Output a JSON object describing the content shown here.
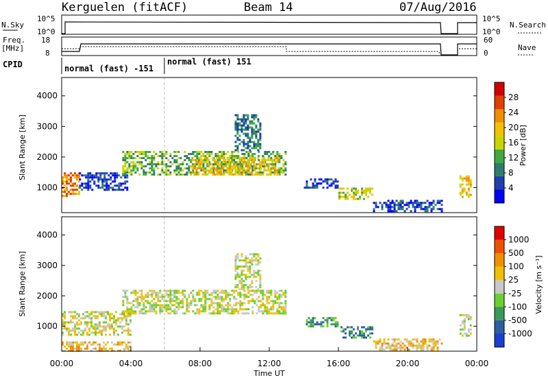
{
  "header": {
    "station": "Kerguelen (fitACF)",
    "beam": "Beam 14",
    "date": "07/Aug/2016"
  },
  "top_panels": {
    "nsky_label": "N.Sky",
    "nsky_ticks": [
      "10^5",
      "10^0"
    ],
    "nsearch_label": "N.Search",
    "nsearch_ticks": [
      "10^5",
      "10^0"
    ],
    "freq_label": "Freq.",
    "freq_unit": "[MHz]",
    "freq_ticks": [
      "18",
      "8"
    ],
    "nave_label": "Nave",
    "nave_ticks": [
      "60",
      "0"
    ],
    "cpid_label": "CPID",
    "cpid_segments": [
      "normal (fast) -151",
      "normal (fast) 151"
    ]
  },
  "chart_data": [
    {
      "type": "heatmap",
      "name": "power",
      "ylabel": "Slant Range [km]",
      "yticks": [
        1000,
        2000,
        3000,
        4000
      ],
      "ylim": [
        180,
        4600
      ],
      "xlim": [
        0,
        24
      ],
      "colorbar": {
        "label": "Power [dB]",
        "ticks": [
          "28",
          "24",
          "20",
          "16",
          "12",
          "8",
          "4"
        ],
        "colors": [
          "#0000ff",
          "#1f3fb0",
          "#2e7d6b",
          "#3faa3f",
          "#c8d400",
          "#f2c200",
          "#f28c00",
          "#e04000",
          "#d00000"
        ]
      },
      "regions": [
        {
          "t0": 0.0,
          "t1": 1.0,
          "r0": 700,
          "r1": 1500,
          "level": 6
        },
        {
          "t0": 1.0,
          "t1": 3.8,
          "r0": 900,
          "r1": 1500,
          "level": 1
        },
        {
          "t0": 3.5,
          "t1": 13.0,
          "r0": 1400,
          "r1": 2200,
          "level": 3
        },
        {
          "t0": 7.5,
          "t1": 12.5,
          "r0": 1400,
          "r1": 2000,
          "level": 5
        },
        {
          "t0": 10.0,
          "t1": 11.5,
          "r0": 2200,
          "r1": 3400,
          "level": 2
        },
        {
          "t0": 14.0,
          "t1": 16.0,
          "r0": 1000,
          "r1": 1300,
          "level": 1
        },
        {
          "t0": 16.0,
          "t1": 18.0,
          "r0": 600,
          "r1": 1000,
          "level": 4
        },
        {
          "t0": 18.0,
          "t1": 22.0,
          "r0": 200,
          "r1": 600,
          "level": 1
        },
        {
          "t0": 23.0,
          "t1": 23.6,
          "r0": 700,
          "r1": 1400,
          "level": 5
        }
      ]
    },
    {
      "type": "heatmap",
      "name": "velocity",
      "ylabel": "Slant Range [km]",
      "xlabel": "Time UT",
      "yticks": [
        1000,
        2000,
        3000,
        4000
      ],
      "xticks": [
        "00:00",
        "04:00",
        "08:00",
        "12:00",
        "16:00",
        "20:00",
        "00:00"
      ],
      "ylim": [
        180,
        4600
      ],
      "xlim": [
        0,
        24
      ],
      "colorbar": {
        "label": "Velocity [m s⁻¹]",
        "ticks": [
          "1000",
          "500",
          "100",
          "25",
          "-25",
          "-100",
          "-500",
          "-1000"
        ],
        "colors": [
          "#1a3fd0",
          "#2e5fa0",
          "#3a9a5a",
          "#6ad030",
          "#c8c8c8",
          "#f0c000",
          "#f09000",
          "#f05000",
          "#e00000"
        ]
      },
      "regions": [
        {
          "t0": 0.0,
          "t1": 4.0,
          "r0": 700,
          "r1": 1500,
          "level": 4
        },
        {
          "t0": 3.5,
          "t1": 13.0,
          "r0": 1400,
          "r1": 2200,
          "level": 4
        },
        {
          "t0": 10.0,
          "t1": 11.5,
          "r0": 2200,
          "r1": 3400,
          "level": 4
        },
        {
          "t0": 0.0,
          "t1": 4.0,
          "r0": 200,
          "r1": 500,
          "level": 5
        },
        {
          "t0": 14.0,
          "t1": 16.0,
          "r0": 1000,
          "r1": 1300,
          "level": 2
        },
        {
          "t0": 16.0,
          "t1": 18.0,
          "r0": 600,
          "r1": 1000,
          "level": 2
        },
        {
          "t0": 18.0,
          "t1": 22.0,
          "r0": 200,
          "r1": 600,
          "level": 5
        },
        {
          "t0": 23.0,
          "t1": 23.6,
          "r0": 700,
          "r1": 1400,
          "level": 4
        }
      ]
    }
  ]
}
